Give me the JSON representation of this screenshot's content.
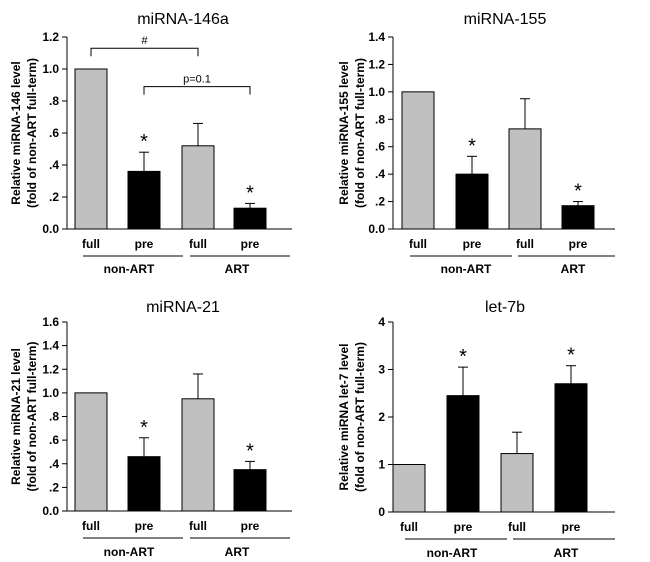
{
  "colors": {
    "full": "#c0c0c0",
    "pre": "#000000",
    "axis": "#000000"
  },
  "chart_data": [
    {
      "type": "bar",
      "title": "miRNA-146a",
      "ylabel_line1": "Relative miRNA-146 level",
      "ylabel_line2": "(fold of non-ART full-term)",
      "categories": [
        "full",
        "pre",
        "full",
        "pre"
      ],
      "groups": [
        "non-ART",
        "ART"
      ],
      "values": [
        1.0,
        0.36,
        0.52,
        0.13
      ],
      "errors": [
        0,
        0.12,
        0.14,
        0.03
      ],
      "fill": [
        "full",
        "pre",
        "full",
        "pre"
      ],
      "stars": [
        "",
        "*",
        "",
        "*"
      ],
      "ylim": [
        0,
        1.2
      ],
      "yticks": [
        0,
        0.2,
        0.4,
        0.6,
        0.8,
        1.0,
        1.2
      ],
      "ytick_labels": [
        "0.0",
        ".2",
        ".4",
        ".6",
        ".8",
        "1.0",
        "1.2"
      ],
      "brackets": [
        {
          "from": 0,
          "to": 2,
          "y": 1.13,
          "label": "#"
        },
        {
          "from": 1,
          "to": 3,
          "y": 0.89,
          "label": "p=0.1"
        }
      ]
    },
    {
      "type": "bar",
      "title": "miRNA-155",
      "ylabel_line1": "Relative miRNA-155 level",
      "ylabel_line2": "(fold of non-ART full-term)",
      "categories": [
        "full",
        "pre",
        "full",
        "pre"
      ],
      "groups": [
        "non-ART",
        "ART"
      ],
      "values": [
        1.0,
        0.4,
        0.73,
        0.17
      ],
      "errors": [
        0,
        0.13,
        0.22,
        0.03
      ],
      "fill": [
        "full",
        "pre",
        "full",
        "pre"
      ],
      "stars": [
        "",
        "*",
        "",
        "*"
      ],
      "ylim": [
        0,
        1.4
      ],
      "yticks": [
        0,
        0.2,
        0.4,
        0.6,
        0.8,
        1.0,
        1.2,
        1.4
      ],
      "ytick_labels": [
        "0.0",
        ".2",
        ".4",
        ".6",
        ".8",
        "1.0",
        "1.2",
        "1.4"
      ],
      "brackets": []
    },
    {
      "type": "bar",
      "title": "miRNA-21",
      "ylabel_line1": "Relative miRNA-21 level",
      "ylabel_line2": "(fold of non-ART full-term)",
      "categories": [
        "full",
        "pre",
        "full",
        "pre"
      ],
      "groups": [
        "non-ART",
        "ART"
      ],
      "values": [
        1.0,
        0.46,
        0.95,
        0.35
      ],
      "errors": [
        0,
        0.16,
        0.21,
        0.07
      ],
      "fill": [
        "full",
        "pre",
        "full",
        "pre"
      ],
      "stars": [
        "",
        "*",
        "",
        "*"
      ],
      "ylim": [
        0,
        1.6
      ],
      "yticks": [
        0,
        0.2,
        0.4,
        0.6,
        0.8,
        1.0,
        1.2,
        1.4,
        1.6
      ],
      "ytick_labels": [
        "0.0",
        ".2",
        ".4",
        ".6",
        ".8",
        "1.0",
        "1.2",
        "1.4",
        "1.6"
      ],
      "brackets": []
    },
    {
      "type": "bar",
      "title": "let-7b",
      "ylabel_line1": "Relative miRNA let-7 level",
      "ylabel_line2": "(fold of non-ART full-term)",
      "categories": [
        "full",
        "pre",
        "full",
        "pre"
      ],
      "groups": [
        "non-ART",
        "ART"
      ],
      "values": [
        1.0,
        2.45,
        1.23,
        2.7
      ],
      "errors": [
        0,
        0.6,
        0.45,
        0.38
      ],
      "fill": [
        "full",
        "pre",
        "full",
        "pre"
      ],
      "stars": [
        "",
        "*",
        "",
        "*"
      ],
      "ylim": [
        0,
        4
      ],
      "yticks": [
        0,
        1,
        2,
        3,
        4
      ],
      "ytick_labels": [
        "0",
        "1",
        "2",
        "3",
        "4"
      ],
      "brackets": []
    }
  ]
}
